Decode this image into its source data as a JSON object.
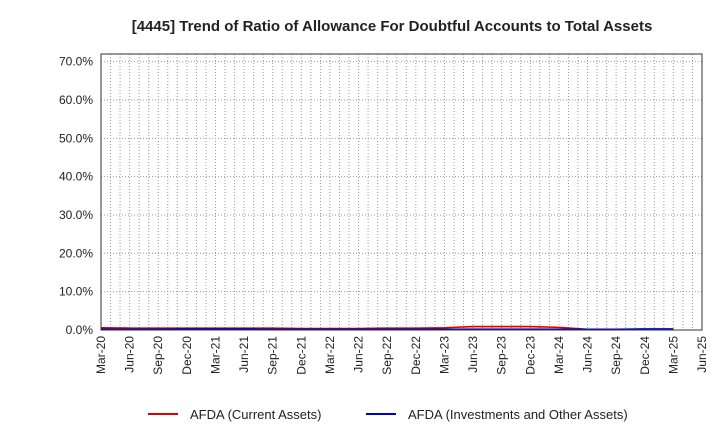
{
  "chart_data": {
    "type": "line",
    "title": "[4445]  Trend of Ratio of Allowance For Doubtful Accounts to Total Assets",
    "xlabel": "",
    "ylabel": "",
    "ylim": [
      0,
      72
    ],
    "y_ticks": [
      0,
      10,
      20,
      30,
      40,
      50,
      60,
      70
    ],
    "y_tick_labels": [
      "0.0%",
      "10.0%",
      "20.0%",
      "30.0%",
      "40.0%",
      "50.0%",
      "60.0%",
      "70.0%"
    ],
    "x_tick_labels": [
      "Mar-20",
      "Jun-20",
      "Sep-20",
      "Dec-20",
      "Mar-21",
      "Jun-21",
      "Sep-21",
      "Dec-21",
      "Mar-22",
      "Jun-22",
      "Sep-22",
      "Dec-22",
      "Mar-23",
      "Jun-23",
      "Sep-23",
      "Dec-23",
      "Mar-24",
      "Jun-24",
      "Sep-24",
      "Dec-24",
      "Mar-25",
      "Jun-25"
    ],
    "grid": true,
    "legend_position": "bottom",
    "x": [
      "Mar-20",
      "Jun-20",
      "Sep-20",
      "Dec-20",
      "Mar-21",
      "Jun-21",
      "Sep-21",
      "Dec-21",
      "Mar-22",
      "Jun-22",
      "Sep-22",
      "Dec-22",
      "Mar-23",
      "Jun-23",
      "Sep-23",
      "Dec-23",
      "Mar-24",
      "Jun-24",
      "Sep-24",
      "Dec-24",
      "Mar-25"
    ],
    "series": [
      {
        "name": "AFDA (Current Assets)",
        "color": "#dd0000",
        "values": [
          0.6,
          0.5,
          0.5,
          0.5,
          0.5,
          0.5,
          0.5,
          0.4,
          0.4,
          0.4,
          0.5,
          0.5,
          0.6,
          0.9,
          0.9,
          0.9,
          0.7,
          0.2,
          0.2,
          0.2,
          0.2
        ]
      },
      {
        "name": "AFDA (Investments and Other Assets)",
        "color": "#0000cc",
        "values": [
          0.2,
          0.2,
          0.2,
          0.3,
          0.3,
          0.3,
          0.2,
          0.2,
          0.2,
          0.2,
          0.2,
          0.2,
          0.2,
          0.2,
          0.2,
          0.2,
          0.2,
          0.2,
          0.2,
          0.3,
          0.3
        ]
      }
    ]
  }
}
